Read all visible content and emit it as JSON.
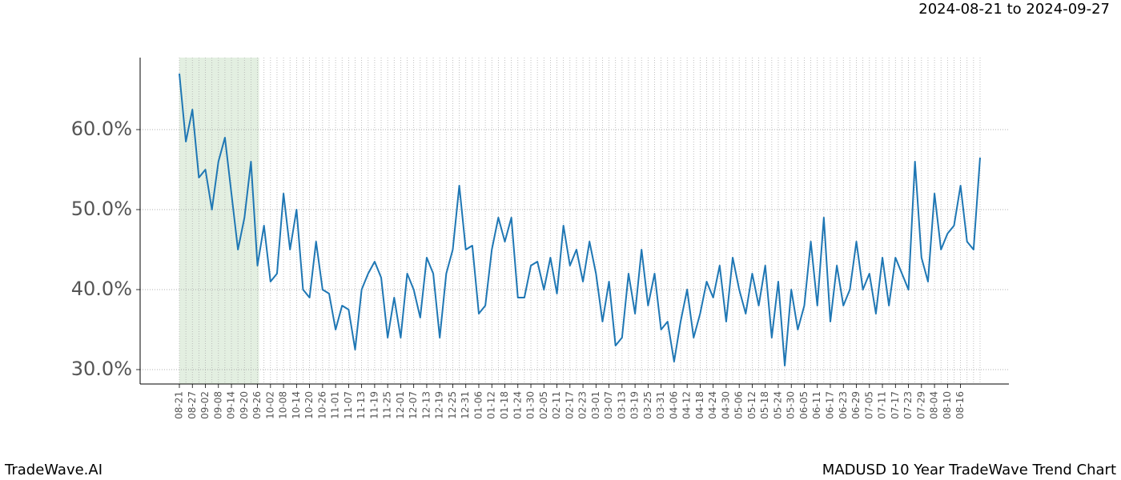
{
  "header": {
    "date_range": "2024-08-21 to 2024-09-27"
  },
  "footer": {
    "brand": "TradeWave.AI",
    "caption": "MADUSD 10 Year TradeWave Trend Chart"
  },
  "chart_data": {
    "type": "line",
    "categories": [
      "08-21",
      null,
      "08-27",
      null,
      "09-02",
      null,
      "09-08",
      null,
      "09-14",
      null,
      "09-20",
      null,
      "09-26",
      null,
      "10-02",
      null,
      "10-08",
      null,
      "10-14",
      null,
      "10-20",
      null,
      "10-26",
      null,
      "11-01",
      null,
      "11-07",
      null,
      "11-13",
      null,
      "11-19",
      null,
      "11-25",
      null,
      "12-01",
      null,
      "12-07",
      null,
      "12-13",
      null,
      "12-19",
      null,
      "12-25",
      null,
      "12-31",
      null,
      "01-06",
      null,
      "01-12",
      null,
      "01-18",
      null,
      "01-24",
      null,
      "01-30",
      null,
      "02-05",
      null,
      "02-11",
      null,
      "02-17",
      null,
      "02-23",
      null,
      "03-01",
      null,
      "03-07",
      null,
      "03-13",
      null,
      "03-19",
      null,
      "03-25",
      null,
      "03-31",
      null,
      "04-06",
      null,
      "04-12",
      null,
      "04-18",
      null,
      "04-24",
      null,
      "04-30",
      null,
      "05-06",
      null,
      "05-12",
      null,
      "05-18",
      null,
      "05-24",
      null,
      "05-30",
      null,
      "06-05",
      null,
      "06-11",
      null,
      "06-17",
      null,
      "06-23",
      null,
      "06-29",
      null,
      "07-05",
      null,
      "07-11",
      null,
      "07-17",
      null,
      "07-23",
      null,
      "07-29",
      null,
      "08-04",
      null,
      "08-10",
      null,
      "08-16",
      null,
      null,
      null
    ],
    "series": [
      {
        "color": "#1f77b4",
        "values": [
          67,
          58.5,
          62.5,
          54,
          55,
          50,
          56,
          59,
          52,
          45,
          49,
          56,
          43,
          48,
          41,
          42,
          52,
          45,
          50,
          40,
          39,
          46,
          40,
          39.5,
          35,
          38,
          37.5,
          32.5,
          40,
          42,
          43.5,
          41.5,
          34,
          39,
          34,
          42,
          40,
          36.5,
          44,
          42,
          34,
          42,
          45,
          53,
          45,
          45.5,
          37,
          38,
          45,
          49,
          46,
          49,
          39,
          39,
          43,
          43.5,
          40,
          44,
          39.5,
          48,
          43,
          45,
          41,
          46,
          42,
          36,
          41,
          33,
          34,
          42,
          37,
          45,
          38,
          42,
          35,
          36,
          31,
          36,
          40,
          34,
          37,
          41,
          39,
          43,
          36,
          44,
          40,
          37,
          42,
          38,
          43,
          34,
          41,
          30.5,
          40,
          35,
          38,
          46,
          38,
          49,
          36,
          43,
          38,
          40,
          46,
          40,
          42,
          37,
          44,
          38,
          44,
          42,
          40,
          56,
          44,
          41,
          52,
          45,
          47,
          48,
          53,
          46,
          45,
          56.5
        ]
      }
    ],
    "ylim": [
      28.2,
      69
    ],
    "yticks": [
      {
        "value": 30,
        "label": "30.0%"
      },
      {
        "value": 40,
        "label": "40.0%"
      },
      {
        "value": 50,
        "label": "50.0%"
      },
      {
        "value": 60,
        "label": "60.0%"
      }
    ],
    "grid": true,
    "highlight": {
      "from": "08-21",
      "to": "09-26",
      "color": "#e3efe1"
    }
  }
}
